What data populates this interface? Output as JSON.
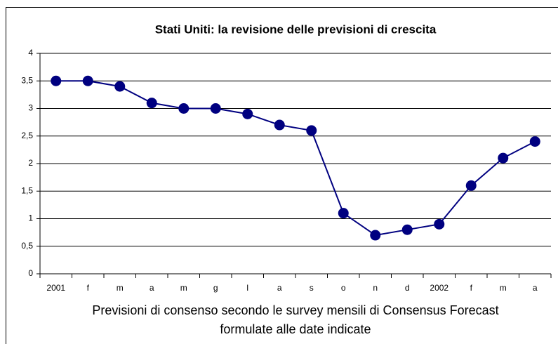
{
  "chart_data": {
    "type": "line",
    "title": "Stati Uniti: la revisione delle previsioni di crescita",
    "categories": [
      "2001",
      "f",
      "m",
      "a",
      "m",
      "g",
      "l",
      "a",
      "s",
      "o",
      "n",
      "d",
      "2002",
      "f",
      "m",
      "a"
    ],
    "values": [
      3.5,
      3.5,
      3.4,
      3.1,
      3.0,
      3.0,
      2.9,
      2.7,
      2.6,
      1.1,
      0.7,
      0.8,
      0.9,
      1.6,
      2.1,
      2.4
    ],
    "color": "#000080",
    "ylim": [
      0,
      4
    ],
    "yticks": [
      0,
      {
        "value": 0.5,
        "label": "0,5"
      },
      1,
      {
        "value": 1.5,
        "label": "1,5"
      },
      2,
      {
        "value": 2.5,
        "label": "2,5"
      },
      3,
      {
        "value": 3.5,
        "label": "3,5"
      },
      4
    ],
    "grid": true,
    "xlabel": [
      "Previsioni di consenso secondo le survey mensili di Consensus Forecast",
      "formulate alle date indicate"
    ]
  }
}
